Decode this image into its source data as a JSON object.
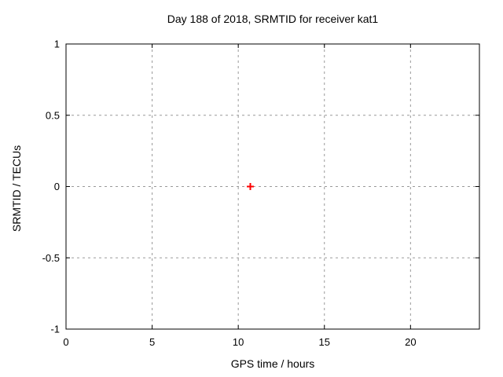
{
  "chart_data": {
    "type": "scatter",
    "title": "Day 188 of 2018, SRMTID for receiver kat1",
    "xlabel": "GPS time / hours",
    "ylabel": "SRMTID / TECUs",
    "xlim": [
      0,
      24
    ],
    "ylim": [
      -1,
      1
    ],
    "xticks": [
      0,
      5,
      10,
      15,
      20
    ],
    "yticks": [
      -1,
      -0.5,
      0,
      0.5,
      1
    ],
    "grid": true,
    "legend_position": "none",
    "series": [
      {
        "name": "SRMTID",
        "marker": "plus",
        "color": "#ff0000",
        "points": [
          {
            "x": 10.7,
            "y": 0.0
          }
        ]
      }
    ],
    "colors": {
      "background": "#ffffff",
      "border": "#000000",
      "grid": "#999999",
      "text": "#000000"
    }
  }
}
